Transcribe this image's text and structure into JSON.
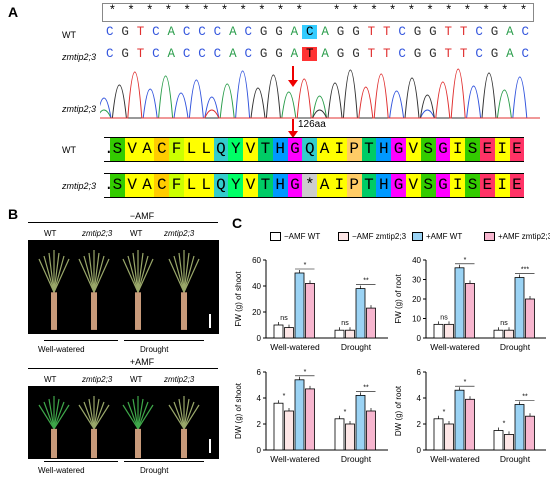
{
  "panels": {
    "a": "A",
    "b": "B",
    "c": "C"
  },
  "panel_a": {
    "wt_label": "WT",
    "mut_label": "zmtip2;3",
    "chromatogram_label": "zmtip2;3",
    "position_label": "126aa",
    "stars": [
      "*",
      "*",
      "*",
      "*",
      "*",
      "*",
      "*",
      "*",
      "*",
      "*",
      "*",
      " ",
      "*",
      "*",
      "*",
      "*",
      "*",
      "*",
      "*",
      "*",
      "*",
      "*",
      "*"
    ],
    "wt_nt": [
      "C",
      "G",
      "T",
      "C",
      "A",
      "C",
      "C",
      "C",
      "A",
      "C",
      "G",
      "G",
      "A",
      "C",
      "A",
      "G",
      "G",
      "T",
      "T",
      "C",
      "G",
      "G",
      "T",
      "T",
      "C",
      "G",
      "A",
      "C"
    ],
    "mut_nt": [
      "C",
      "G",
      "T",
      "C",
      "A",
      "C",
      "C",
      "C",
      "A",
      "C",
      "G",
      "G",
      "A",
      "T",
      "A",
      "G",
      "G",
      "T",
      "T",
      "C",
      "G",
      "G",
      "T",
      "T",
      "C",
      "G",
      "A",
      "C"
    ],
    "wt_aa": [
      ".",
      "S",
      "V",
      "A",
      "C",
      "F",
      "L",
      "L",
      "Q",
      "Y",
      "V",
      "T",
      "H",
      "G",
      "Q",
      "A",
      "I",
      "P",
      "T",
      "H",
      "G",
      "V",
      "S",
      "G",
      "I",
      "S",
      "E",
      "I",
      "E"
    ],
    "mut_aa": [
      ".",
      "S",
      "V",
      "A",
      "C",
      "F",
      "L",
      "L",
      "Q",
      "Y",
      "V",
      "T",
      "H",
      "G",
      "*",
      "A",
      "I",
      "P",
      "T",
      "H",
      "G",
      "V",
      "S",
      "G",
      "I",
      "S",
      "E",
      "I",
      "E"
    ],
    "aa_colors": {
      "S": "#33cc00",
      "V": "#ffff00",
      "A": "#ffff00",
      "C": "#ffcc00",
      "F": "#ccff00",
      "L": "#ffff00",
      "Q": "#33cccc",
      "Y": "#00ff66",
      "T": "#00cc66",
      "H": "#0099ff",
      "G": "#ff00ff",
      "I": "#ffff00",
      "P": "#ffcc66",
      "E": "#ff3366",
      "*": "#cccccc",
      ".": "#ffffff"
    },
    "wt_highlight_color": "#33ccff",
    "mut_highlight_color": "#ff3333"
  },
  "panel_b": {
    "top_header": "−AMF",
    "bottom_header": "+AMF",
    "col_wt": "WT",
    "col_mut": "zmtip2;3",
    "group_ww": "Well-watered",
    "group_dr": "Drought"
  },
  "legend": [
    {
      "label": "−AMF WT",
      "color": "#ffffff"
    },
    {
      "label": "−AMF zmtip2;3",
      "color": "#fde6e6"
    },
    {
      "label": "+AMF WT",
      "color": "#9bd3f4"
    },
    {
      "label": "+AMF zmtip2;3",
      "color": "#f7b6cf"
    }
  ],
  "chart_data": [
    {
      "type": "bar",
      "ylabel": "FW (g) of shoot",
      "yticks": [
        "0",
        "20",
        "40",
        "60"
      ],
      "ylim": [
        0,
        60
      ],
      "categories": [
        "Well-watered",
        "Drought"
      ],
      "series": [
        {
          "name": "−AMF WT",
          "values": [
            10,
            6
          ]
        },
        {
          "name": "−AMF zmtip2;3",
          "values": [
            8,
            6
          ]
        },
        {
          "name": "+AMF WT",
          "values": [
            50,
            38
          ]
        },
        {
          "name": "+AMF zmtip2;3",
          "values": [
            42,
            23
          ]
        }
      ],
      "annotations": [
        "ns",
        "*",
        "ns",
        "**"
      ]
    },
    {
      "type": "bar",
      "ylabel": "FW (g) of root",
      "yticks": [
        "0",
        "10",
        "20",
        "30",
        "40"
      ],
      "ylim": [
        0,
        40
      ],
      "categories": [
        "Well-watered",
        "Drought"
      ],
      "series": [
        {
          "name": "−AMF WT",
          "values": [
            7,
            4
          ]
        },
        {
          "name": "−AMF zmtip2;3",
          "values": [
            7,
            4
          ]
        },
        {
          "name": "+AMF WT",
          "values": [
            36,
            31
          ]
        },
        {
          "name": "+AMF zmtip2;3",
          "values": [
            28,
            20
          ]
        }
      ],
      "annotations": [
        "ns",
        "*",
        "ns",
        "***"
      ]
    },
    {
      "type": "bar",
      "ylabel": "DW (g) of shoot",
      "yticks": [
        "0",
        "2",
        "4",
        "6"
      ],
      "ylim": [
        0,
        6
      ],
      "categories": [
        "Well-watered",
        "Drought"
      ],
      "series": [
        {
          "name": "−AMF WT",
          "values": [
            3.6,
            2.4
          ]
        },
        {
          "name": "−AMF zmtip2;3",
          "values": [
            3.0,
            2.0
          ]
        },
        {
          "name": "+AMF WT",
          "values": [
            5.4,
            4.2
          ]
        },
        {
          "name": "+AMF zmtip2;3",
          "values": [
            4.7,
            3.0
          ]
        }
      ],
      "annotations": [
        "*",
        "*",
        "*",
        "**"
      ]
    },
    {
      "type": "bar",
      "ylabel": "DW (g) of root",
      "yticks": [
        "0",
        "2",
        "4",
        "6"
      ],
      "ylim": [
        0,
        6
      ],
      "categories": [
        "Well-watered",
        "Drought"
      ],
      "series": [
        {
          "name": "−AMF WT",
          "values": [
            2.4,
            1.5
          ]
        },
        {
          "name": "−AMF zmtip2;3",
          "values": [
            2.0,
            1.2
          ]
        },
        {
          "name": "+AMF WT",
          "values": [
            4.6,
            3.5
          ]
        },
        {
          "name": "+AMF zmtip2;3",
          "values": [
            3.9,
            2.6
          ]
        }
      ],
      "annotations": [
        "*",
        "*",
        "*",
        "**"
      ]
    }
  ]
}
